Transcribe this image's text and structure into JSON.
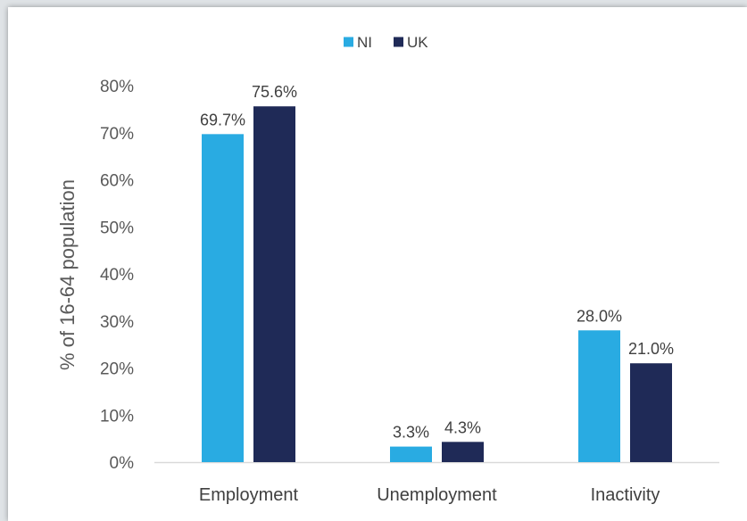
{
  "chart_data": {
    "type": "bar",
    "title": "",
    "xlabel": "",
    "ylabel": "% of 16-64 population",
    "categories": [
      "Employment",
      "Unemployment",
      "Inactivity"
    ],
    "series": [
      {
        "name": "NI",
        "values": [
          69.7,
          3.3,
          28.0
        ],
        "labels": [
          "69.7%",
          "3.3%",
          "28.0%"
        ],
        "color": "#29abe2"
      },
      {
        "name": "UK",
        "values": [
          75.6,
          4.3,
          21.0
        ],
        "labels": [
          "75.6%",
          "4.3%",
          "21.0%"
        ],
        "color": "#1f2a57"
      }
    ],
    "ylim": [
      0,
      80
    ],
    "yticks": [
      0,
      10,
      20,
      30,
      40,
      50,
      60,
      70,
      80
    ],
    "ytick_labels": [
      "0%",
      "10%",
      "20%",
      "30%",
      "40%",
      "50%",
      "60%",
      "70%",
      "80%"
    ],
    "grid": false,
    "legend_position": "top-center"
  }
}
